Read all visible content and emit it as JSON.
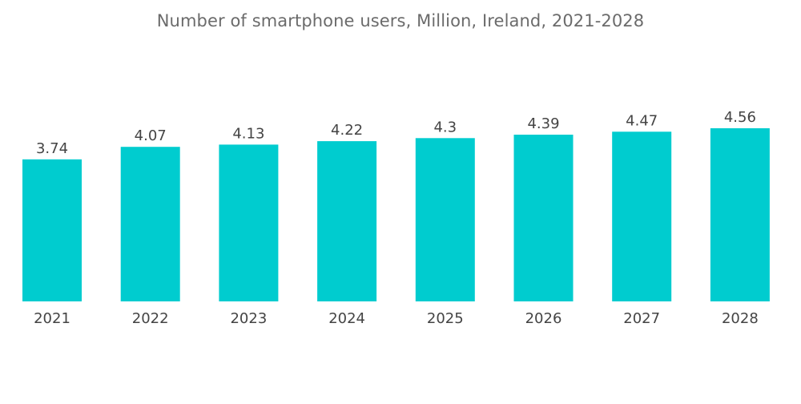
{
  "chart_data": {
    "type": "bar",
    "title": "Number of smartphone users, Million, Ireland, 2021-2028",
    "categories": [
      "2021",
      "2022",
      "2023",
      "2024",
      "2025",
      "2026",
      "2027",
      "2028"
    ],
    "values": [
      3.74,
      4.07,
      4.13,
      4.22,
      4.3,
      4.39,
      4.47,
      4.56
    ],
    "value_labels": [
      "3.74",
      "4.07",
      "4.13",
      "4.22",
      "4.3",
      "4.39",
      "4.47",
      "4.56"
    ],
    "xlabel": "",
    "ylabel": "",
    "bar_color": "#00CCCF",
    "grid": false,
    "legend": "none"
  }
}
